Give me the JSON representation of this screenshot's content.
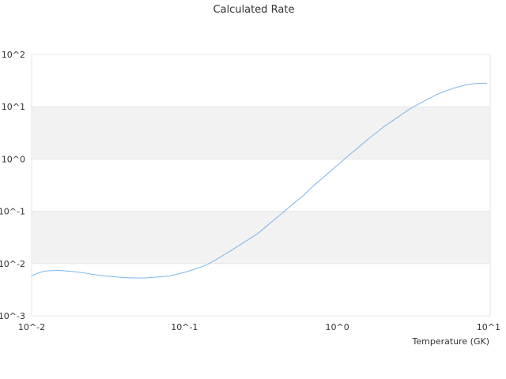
{
  "chart_data": {
    "type": "line",
    "title": "Calculated Rate",
    "xlabel": "Temperature (GK)",
    "ylabel": "",
    "xscale": "log",
    "yscale": "log",
    "xlim": [
      0.01,
      10
    ],
    "ylim": [
      0.001,
      100
    ],
    "x_ticks": [
      "10^-2",
      "10^-1",
      "10^0",
      "10^1"
    ],
    "y_ticks": [
      "10^-3",
      "10^-2",
      "10^-1",
      "10^0",
      "10^1",
      "10^2"
    ],
    "grid": "alternating horizontal bands",
    "legend": "none",
    "colors": {
      "line": "#7cb5ec",
      "band": "#f2f2f2",
      "gridline": "#e6e6e6",
      "text": "#333333"
    },
    "series": [
      {
        "x": [
          0.01,
          0.011,
          0.012,
          0.013,
          0.015,
          0.017,
          0.02,
          0.023,
          0.025,
          0.03,
          0.035,
          0.04,
          0.045,
          0.05,
          0.055,
          0.06,
          0.07,
          0.08,
          0.09,
          0.1,
          0.12,
          0.14,
          0.16,
          0.18,
          0.2,
          0.25,
          0.3,
          0.35,
          0.4,
          0.45,
          0.5,
          0.6,
          0.7,
          0.8,
          0.9,
          1.0,
          1.2,
          1.4,
          1.6,
          1.8,
          2.0,
          2.5,
          3.0,
          3.5,
          4.0,
          4.5,
          5.0,
          5.5,
          6.0,
          7.0,
          8.0,
          9.0,
          9.5
        ],
        "y": [
          0.0058,
          0.0066,
          0.0071,
          0.0073,
          0.0074,
          0.0072,
          0.0069,
          0.0065,
          0.0062,
          0.0058,
          0.0056,
          0.0054,
          0.0053,
          0.0053,
          0.0053,
          0.0054,
          0.0056,
          0.0058,
          0.0063,
          0.0068,
          0.008,
          0.0095,
          0.0118,
          0.0145,
          0.0175,
          0.0265,
          0.037,
          0.054,
          0.075,
          0.1,
          0.13,
          0.2,
          0.31,
          0.43,
          0.58,
          0.76,
          1.2,
          1.75,
          2.45,
          3.2,
          4.1,
          6.4,
          9.2,
          11.8,
          14.5,
          17.3,
          19.5,
          21.5,
          23.5,
          26.3,
          27.8,
          28.2,
          28.2
        ]
      }
    ]
  }
}
